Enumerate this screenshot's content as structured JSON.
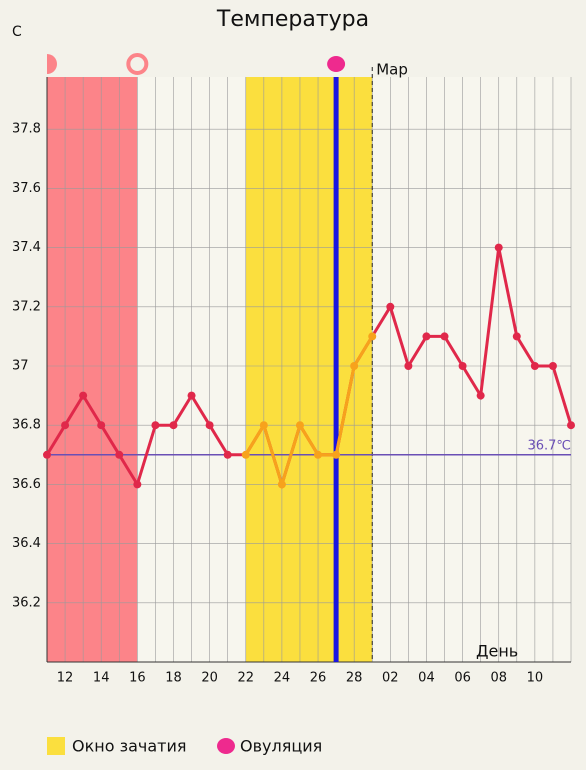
{
  "chart_data": {
    "type": "line",
    "title": "Температура",
    "y_label": "С",
    "x_label": "День",
    "categories": [
      null,
      "12",
      null,
      "14",
      null,
      "16",
      null,
      "18",
      null,
      "20",
      null,
      "22",
      null,
      "24",
      null,
      "26",
      null,
      "28",
      null,
      "02",
      null,
      "04",
      null,
      "06",
      null,
      "08",
      null,
      "10",
      null,
      null
    ],
    "series": [
      {
        "name": "Температура",
        "color": "#e0284a",
        "values": [
          36.7,
          36.8,
          36.9,
          36.8,
          36.7,
          36.6,
          36.8,
          36.8,
          36.9,
          36.8,
          36.7,
          36.7,
          36.8,
          36.6,
          36.8,
          36.7,
          36.7,
          37.0,
          37.1,
          37.2,
          37.0,
          37.1,
          37.1,
          37.0,
          36.9,
          37.4,
          37.1,
          37.0,
          37.0,
          36.8
        ]
      }
    ],
    "ylim": [
      36,
      38
    ],
    "yticks": [
      36.2,
      36.4,
      36.6,
      36.8,
      37,
      37.2,
      37.4,
      37.6,
      37.8
    ],
    "grid": true,
    "period": {
      "start": 0,
      "end": 5,
      "color": "#fc8489"
    },
    "fertile_window": {
      "label": "Окно зачатия",
      "start": 11,
      "end": 18,
      "color": "#fbdf3e",
      "line_color": "#f7a21c"
    },
    "ovulation": {
      "label": "Овуляция",
      "index": 16,
      "color": "#1a14e0"
    },
    "month_start": {
      "label": "Мар",
      "index": 18
    },
    "reference": {
      "value": 36.7,
      "label": "36.7℃",
      "color": "#6a4fb5"
    }
  }
}
